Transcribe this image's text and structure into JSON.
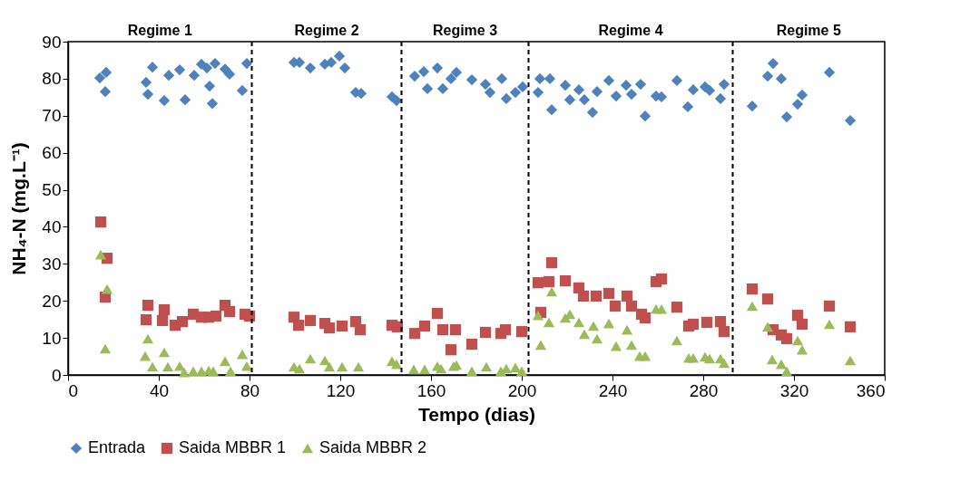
{
  "chart_data": {
    "type": "scatter",
    "xlabel": "Tempo  (dias)",
    "ylabel": "NH₄-N (mg.L⁻¹)",
    "xlim": [
      0,
      360
    ],
    "xticks": [
      0,
      40,
      80,
      120,
      160,
      200,
      240,
      280,
      320,
      360
    ],
    "ylim": [
      0,
      90
    ],
    "yticks": [
      0,
      10,
      20,
      30,
      40,
      50,
      60,
      70,
      80,
      90
    ],
    "grid": false,
    "legend": "bottom",
    "series": [
      {
        "name": "Entrada",
        "color": "#4f81bd",
        "marker": "diamond",
        "x": [
          14,
          16.8,
          16.4,
          34.4,
          35.2,
          37.2,
          42.4,
          44.4,
          49.2,
          51.6,
          55.6,
          58.8,
          61.2,
          62.4,
          63.6,
          64.8,
          69.2,
          71.2,
          76.8,
          78.8,
          99.6,
          102,
          106.8,
          113.2,
          116,
          119.6,
          122,
          126.8,
          129.2,
          142.8,
          144.8,
          152.8,
          156.8,
          162.8,
          158.4,
          165.2,
          168.8,
          171.2,
          178,
          184,
          186,
          191.2,
          193.2,
          197.2,
          200.4,
          207.2,
          208,
          212.4,
          213.2,
          219.2,
          221.2,
          225.2,
          227.6,
          231.2,
          233.2,
          238.4,
          241.6,
          246,
          248.4,
          252.4,
          254.4,
          259.2,
          261.6,
          268.4,
          273.2,
          275.6,
          280.8,
          282.8,
          287.6,
          289.2,
          301.6,
          308.4,
          310.8,
          314.4,
          316.8,
          321.6,
          323.6,
          335.6,
          344.8
        ],
        "values": [
          80.2,
          81.7,
          76.5,
          79,
          75.8,
          83.1,
          74.1,
          80.9,
          82.4,
          74.3,
          80.9,
          83.9,
          82.9,
          78,
          73.3,
          84.1,
          82.6,
          81.2,
          76.8,
          84.1,
          84.4,
          84.4,
          82.9,
          83.9,
          84.4,
          86.1,
          82.9,
          76.3,
          76,
          75.1,
          74.1,
          80.7,
          81.9,
          82.9,
          77.3,
          77.3,
          80,
          81.7,
          79.7,
          78.5,
          76.3,
          80,
          74.6,
          76.3,
          77.8,
          76.3,
          80,
          80,
          71.6,
          78.2,
          74.3,
          77,
          74.3,
          70.9,
          76.5,
          79.5,
          75.3,
          78.2,
          75.8,
          78.5,
          69.9,
          75.3,
          75.1,
          79.5,
          72.4,
          77,
          77.8,
          76.8,
          74.6,
          78.5,
          72.6,
          80.7,
          84.1,
          80,
          69.7,
          73.1,
          75.6,
          81.7,
          68.7
        ]
      },
      {
        "name": "Saida MBBR 1",
        "color": "#c0504d",
        "marker": "square",
        "x": [
          14.4,
          17.2,
          16.4,
          34.4,
          35.2,
          42.4,
          41.6,
          47.2,
          50.4,
          55.2,
          58.8,
          62,
          65.2,
          69.2,
          71.2,
          78,
          80,
          99.6,
          101.6,
          106.8,
          113.2,
          115.2,
          120.8,
          126.8,
          128.8,
          142.8,
          145.2,
          152.8,
          157.2,
          162.8,
          165.2,
          170.8,
          168.8,
          178,
          184,
          190.8,
          192.8,
          200,
          207.2,
          208.4,
          212,
          213.2,
          219.2,
          225.2,
          227.2,
          232.8,
          238.4,
          241.2,
          246.4,
          248.4,
          252.8,
          254.4,
          259.2,
          261.6,
          268.4,
          273.6,
          275.6,
          281.6,
          287.6,
          289.2,
          301.6,
          308.4,
          310.8,
          314.4,
          316.8,
          321.6,
          323.6,
          335.6,
          344.8
        ],
        "values": [
          41.3,
          31.5,
          21,
          14.9,
          18.8,
          17.6,
          14.7,
          13.4,
          14.4,
          16.4,
          15.6,
          15.6,
          15.9,
          18.8,
          17.1,
          16.4,
          15.9,
          15.6,
          13.4,
          14.7,
          13.9,
          12.7,
          13.2,
          14.4,
          12.2,
          13.4,
          13,
          11.2,
          13.2,
          16.6,
          12.2,
          12.2,
          6.8,
          8.3,
          11.5,
          11.2,
          12.2,
          11.7,
          24.9,
          16.9,
          25.2,
          30.3,
          25.4,
          23.5,
          21.3,
          21.3,
          22,
          18.6,
          21.3,
          18.6,
          16.4,
          15.4,
          25.2,
          25.9,
          18.3,
          13.2,
          13.7,
          14.2,
          14.4,
          11.7,
          23.2,
          20.5,
          12.2,
          10.8,
          9.8,
          16.1,
          13.7,
          18.6,
          13
        ]
      },
      {
        "name": "Saida MBBR 2",
        "color": "#9bbb59",
        "marker": "triangle",
        "x": [
          14.4,
          17.2,
          16.4,
          35.2,
          34,
          37.2,
          42.4,
          44,
          49.2,
          51.2,
          55.2,
          58.8,
          62,
          64,
          69.2,
          71.6,
          76.8,
          78.8,
          99.6,
          102,
          106.8,
          113.2,
          115.2,
          120.8,
          128,
          142.8,
          144.8,
          152.4,
          157.2,
          162.8,
          164.4,
          170,
          171.2,
          178,
          184.4,
          190.8,
          193.2,
          197.2,
          200,
          207.2,
          208.4,
          212,
          213.2,
          219.2,
          221.2,
          225.2,
          227.6,
          231.6,
          233.2,
          238.4,
          241.6,
          246.4,
          248.4,
          252,
          254.4,
          259.2,
          261.6,
          268.4,
          273.6,
          275.6,
          280.8,
          282.8,
          287.6,
          289.2,
          301.6,
          308.4,
          310.4,
          314.4,
          316.8,
          321.6,
          323.6,
          335.6,
          344.8
        ],
        "values": [
          32.5,
          23.2,
          7.1,
          9.8,
          5.1,
          2.2,
          6.1,
          2.2,
          2.4,
          0.7,
          1,
          1,
          1.2,
          1,
          3.7,
          1,
          5.6,
          2.4,
          2.2,
          1.7,
          4.4,
          3.9,
          2.2,
          2.2,
          2.2,
          3.7,
          2.9,
          1.5,
          1.5,
          2.4,
          1.7,
          2.4,
          2.7,
          1,
          2.2,
          1,
          1.7,
          2,
          1,
          16.1,
          8.1,
          14.2,
          22.5,
          15.4,
          16.4,
          14.2,
          11,
          13.2,
          9.8,
          13.9,
          7.8,
          12.2,
          8.1,
          5.1,
          5.1,
          17.8,
          17.8,
          9.3,
          4.6,
          4.6,
          4.9,
          4.4,
          4.4,
          3.2,
          18.6,
          13,
          4.2,
          2.9,
          1,
          9.3,
          6.8,
          13.7,
          3.9
        ]
      }
    ],
    "ref_lines": [
      {
        "axis": "x",
        "value": 81,
        "color": "#000000",
        "line_style": "dashed"
      },
      {
        "axis": "x",
        "value": 147,
        "color": "#000000",
        "line_style": "dashed"
      },
      {
        "axis": "x",
        "value": 203,
        "color": "#000000",
        "line_style": "dashed"
      },
      {
        "axis": "x",
        "value": 293,
        "color": "#000000",
        "line_style": "dashed"
      }
    ],
    "annotations": [
      "Regime 1",
      "Regime 2",
      "Regime 3",
      "Regime 4",
      "Regime 5"
    ]
  }
}
